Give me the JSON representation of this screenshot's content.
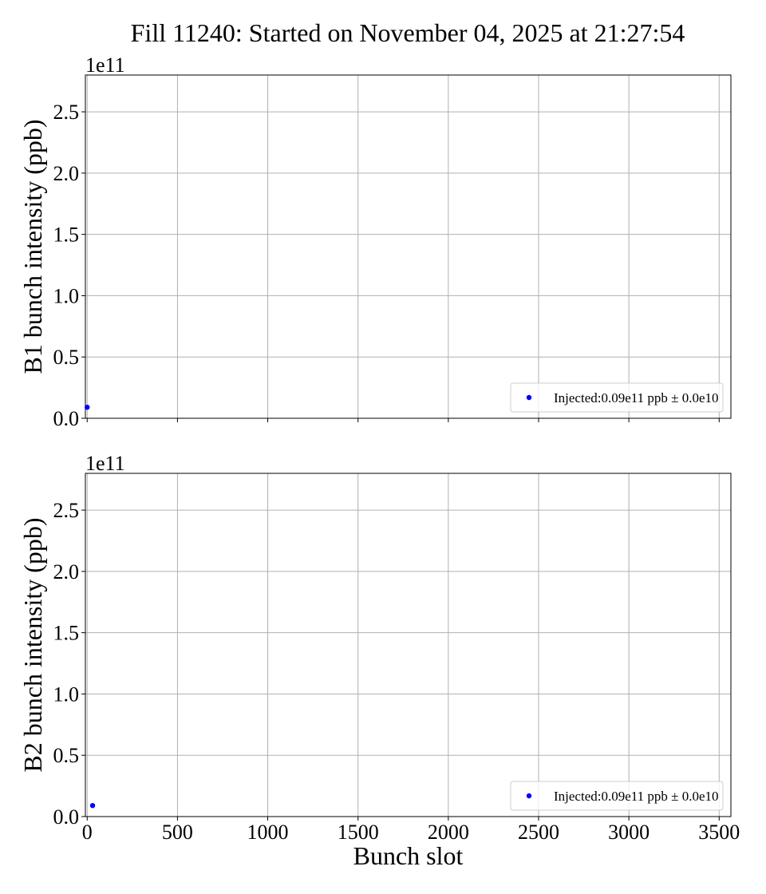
{
  "title": "Fill 11240: Started on November 04, 2025 at 21:27:54",
  "colors": {
    "marker": "#0000ff",
    "grid": "#b0b0b0",
    "axis": "#000000"
  },
  "chart_data": [
    {
      "type": "scatter",
      "ylabel": "B1 bunch intensity (ppb)",
      "xlabel": "",
      "offset_text": "1e11",
      "xlim": [
        -10,
        3565
      ],
      "ylim": [
        0,
        2.8
      ],
      "x_ticks": [
        0,
        500,
        1000,
        1500,
        2000,
        2500,
        3000,
        3500
      ],
      "y_ticks": [
        0.0,
        0.5,
        1.0,
        1.5,
        2.0,
        2.5
      ],
      "y_tick_labels": [
        "0.0",
        "0.5",
        "1.0",
        "1.5",
        "2.0",
        "2.5"
      ],
      "show_x_tick_labels": false,
      "grid": true,
      "legend_position": "lower right",
      "series": [
        {
          "name": "Injected:0.09e11 ppb ± 0.0e10",
          "x": [
            0
          ],
          "y": [
            0.09
          ]
        }
      ]
    },
    {
      "type": "scatter",
      "ylabel": "B2 bunch intensity (ppb)",
      "xlabel": "Bunch slot",
      "offset_text": "1e11",
      "xlim": [
        -10,
        3565
      ],
      "ylim": [
        0,
        2.8
      ],
      "x_ticks": [
        0,
        500,
        1000,
        1500,
        2000,
        2500,
        3000,
        3500
      ],
      "x_tick_labels": [
        "0",
        "500",
        "1000",
        "1500",
        "2000",
        "2500",
        "3000",
        "3500"
      ],
      "y_ticks": [
        0.0,
        0.5,
        1.0,
        1.5,
        2.0,
        2.5
      ],
      "y_tick_labels": [
        "0.0",
        "0.5",
        "1.0",
        "1.5",
        "2.0",
        "2.5"
      ],
      "show_x_tick_labels": true,
      "grid": true,
      "legend_position": "lower right",
      "series": [
        {
          "name": "Injected:0.09e11 ppb ± 0.0e10",
          "x": [
            30
          ],
          "y": [
            0.09
          ]
        }
      ]
    }
  ]
}
